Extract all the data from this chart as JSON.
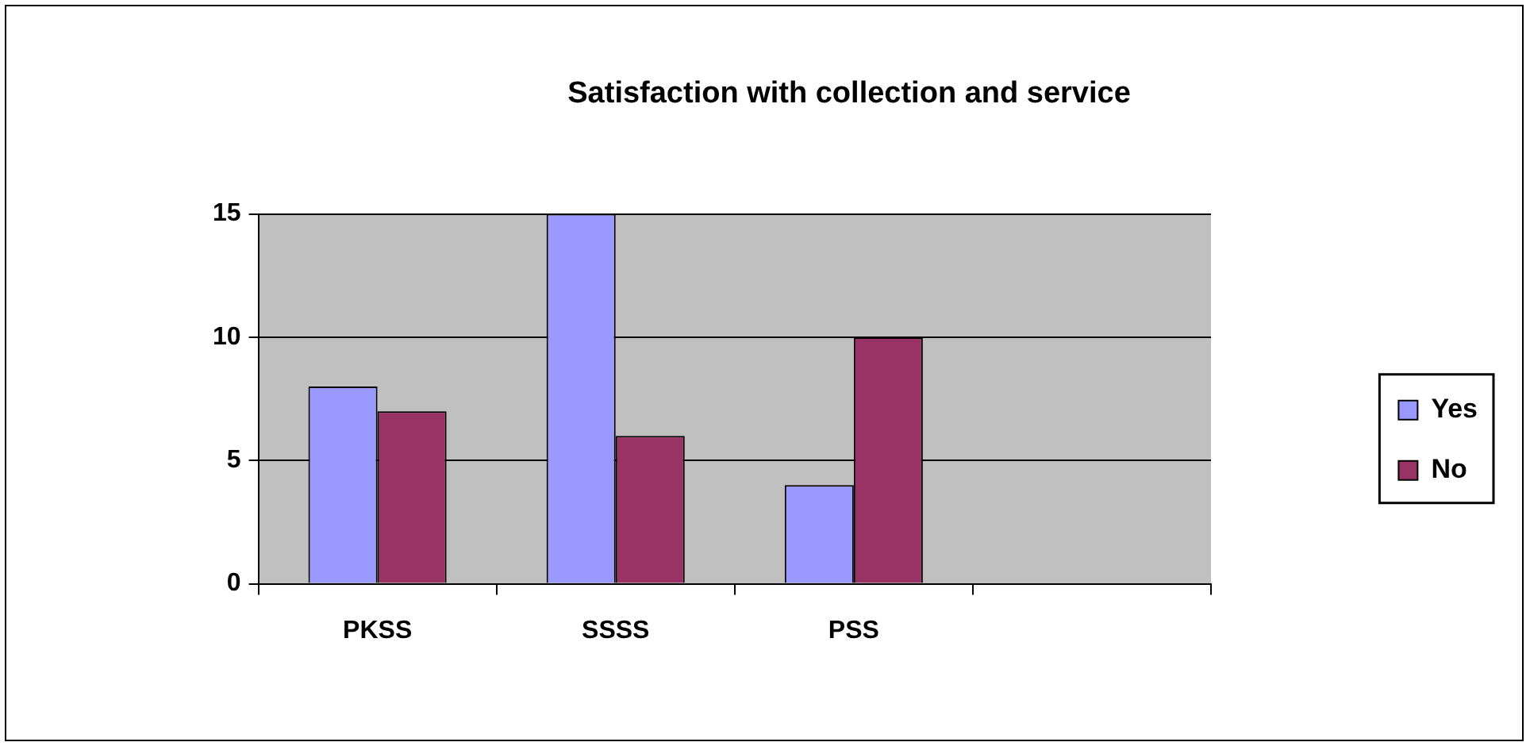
{
  "chart_data": {
    "type": "bar",
    "title": "Satisfaction with collection and service",
    "categories": [
      "PKSS",
      "SSSS",
      "PSS",
      null
    ],
    "series": [
      {
        "name": "Yes",
        "color": "#9999ff",
        "values": [
          8,
          15,
          4,
          null
        ]
      },
      {
        "name": "No",
        "color": "#993366",
        "values": [
          7,
          6,
          10,
          null
        ]
      }
    ],
    "ylim": [
      0,
      15
    ],
    "yticks": [
      0,
      5,
      10,
      15
    ],
    "grid": "y",
    "legend": "right"
  }
}
